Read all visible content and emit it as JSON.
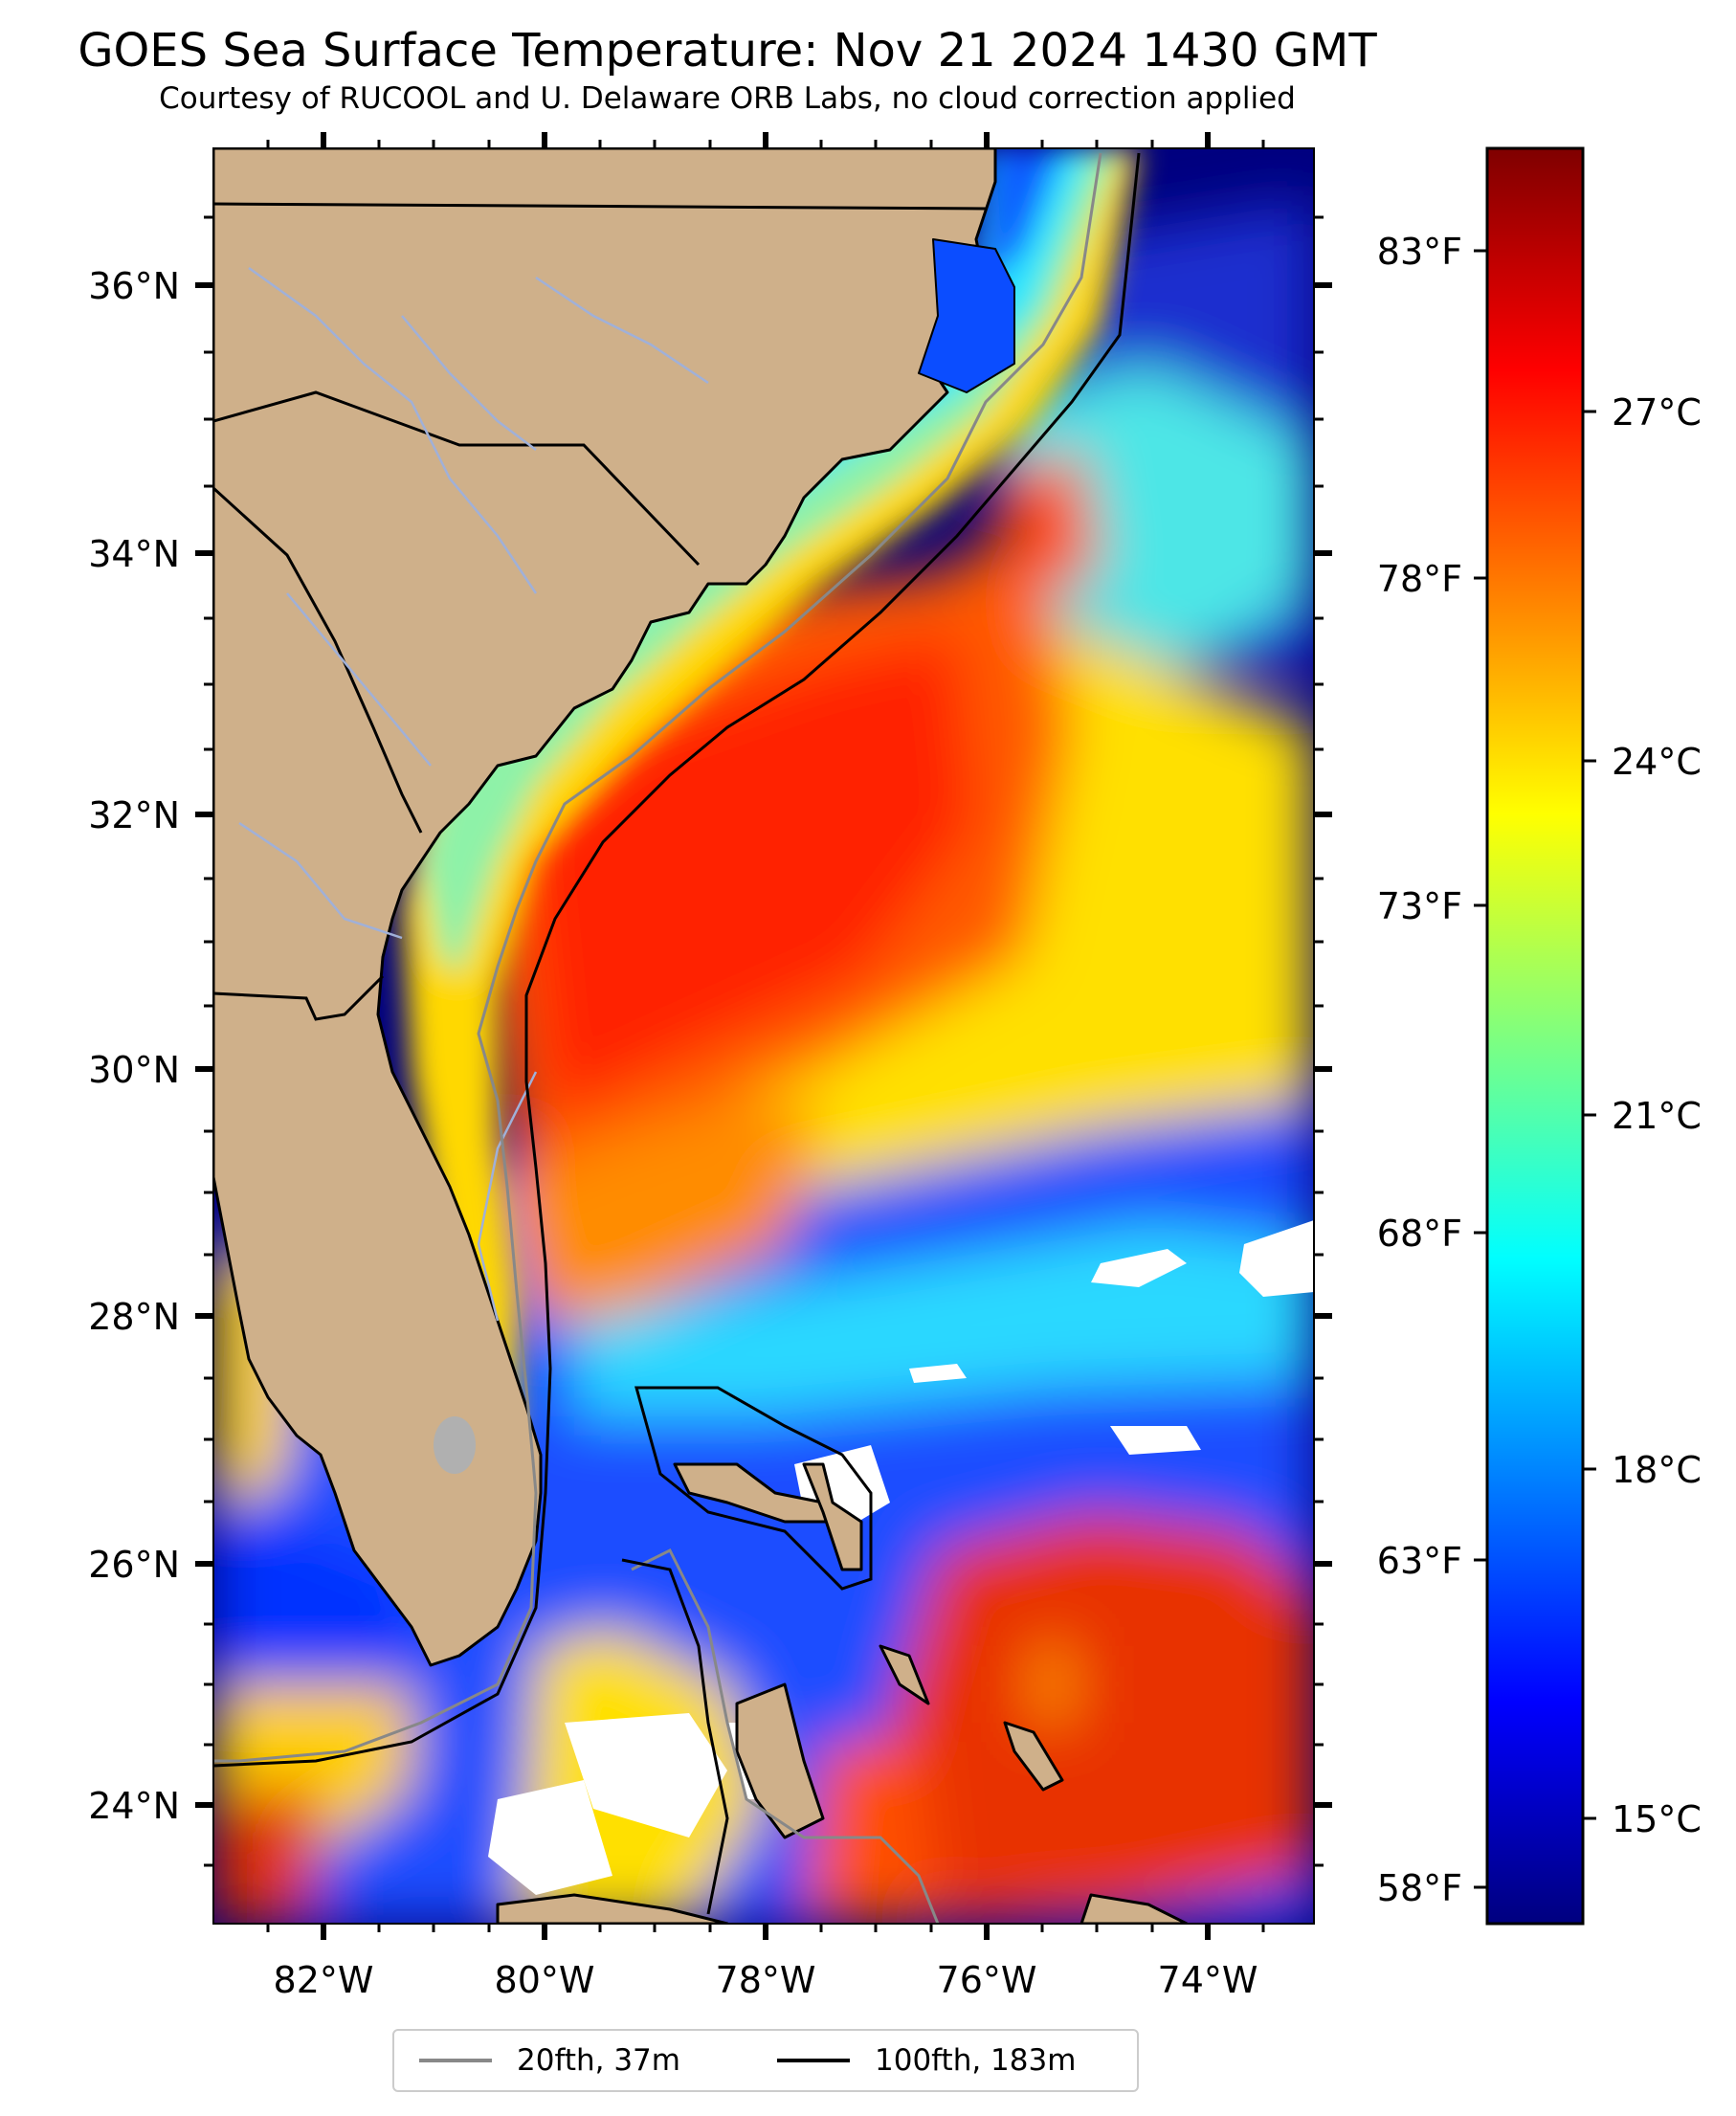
{
  "title": "GOES Sea Surface Temperature: Nov 21 2024 1430 GMT",
  "subtitle": "Courtesy of RUCOOL and U. Delaware ORB Labs, no cloud correction applied",
  "map": {
    "lat_labels": [
      "24°N",
      "26°N",
      "28°N",
      "30°N",
      "32°N",
      "34°N",
      "36°N"
    ],
    "lon_labels": [
      "82°W",
      "80°W",
      "78°W",
      "76°W",
      "74°W"
    ],
    "fahrenheit_labels": [
      "58°F",
      "63°F",
      "68°F",
      "73°F",
      "78°F",
      "83°F"
    ],
    "colors": {
      "land": "#cfb08a",
      "cold": "#00007f",
      "warm": "#e84000",
      "shelf": "#ffd200",
      "contour_20fth": "#888888",
      "contour_100fth": "#000000"
    }
  },
  "colorbar": {
    "labels": [
      "15°C",
      "18°C",
      "21°C",
      "24°C",
      "27°C"
    ],
    "colors": [
      "#00007f",
      "#0000ff",
      "#007fff",
      "#00ffff",
      "#7fff7f",
      "#ffff00",
      "#ff7f00",
      "#ff0000",
      "#7f0000"
    ]
  },
  "legend": {
    "items": [
      {
        "label": "20fth, 37m",
        "color": "#888888"
      },
      {
        "label": "100fth, 183m",
        "color": "#000000"
      }
    ]
  }
}
